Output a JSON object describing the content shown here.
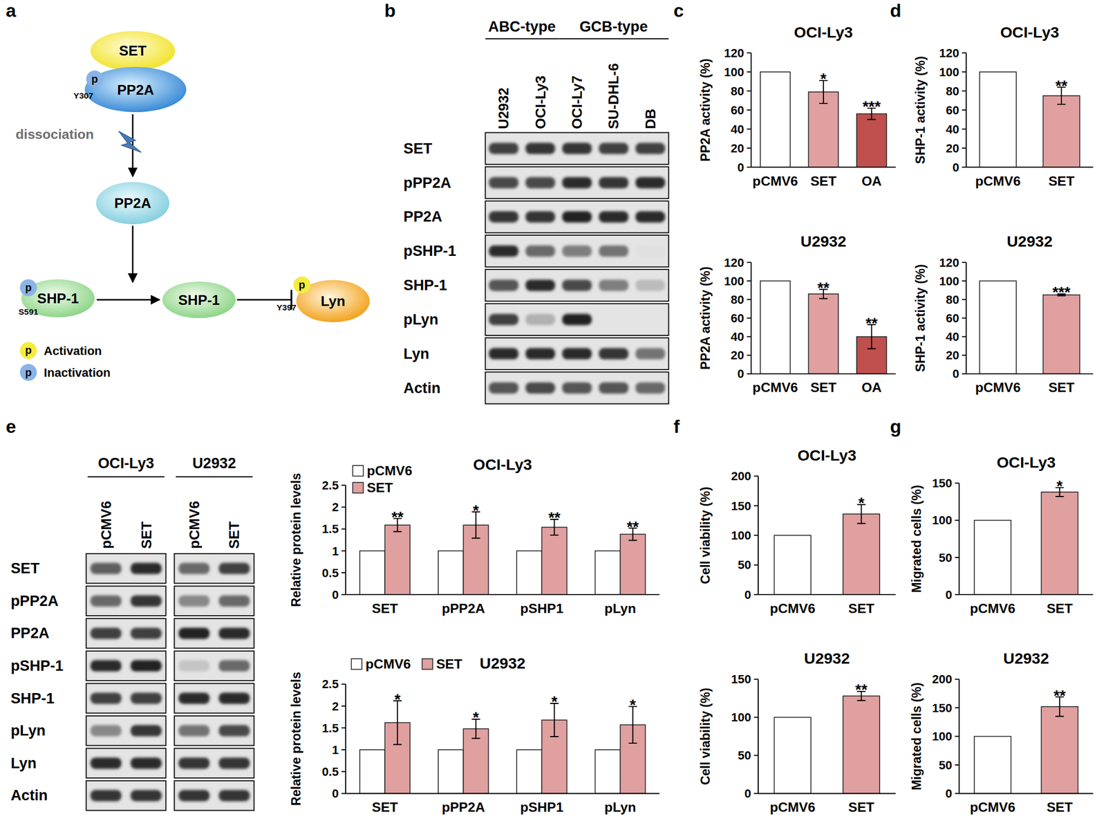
{
  "panels": [
    "a",
    "b",
    "c",
    "d",
    "e",
    "f",
    "g"
  ],
  "diagram": {
    "phospho_symbol": "p",
    "edge_label": "dissociation",
    "nodes": [
      {
        "label": "SET"
      },
      {
        "label": "PP2A",
        "phospho": "Inactivation",
        "site": "Y307"
      },
      {
        "label": "PP2A"
      },
      {
        "label": "SHP-1",
        "phospho": "Inactivation",
        "site": "S591"
      },
      {
        "label": "SHP-1"
      },
      {
        "label": "Lyn",
        "phospho": "Activation",
        "site": "Y397"
      }
    ],
    "legend": [
      {
        "label": "Activation",
        "color": "#f5ec3d"
      },
      {
        "label": "Inactivation",
        "color": "#8ab4e6"
      }
    ]
  },
  "blots": [
    {
      "groups": [
        {
          "label": "ABC-type",
          "lanes": [
            "U2932",
            "OCI-Ly3"
          ]
        },
        {
          "label": "GCB-type",
          "lanes": [
            "OCI-Ly7",
            "SU-DHL-6",
            "DB"
          ]
        }
      ],
      "rows": [
        {
          "label": "SET",
          "intensity": [
            0.8,
            0.85,
            0.85,
            0.8,
            0.8
          ]
        },
        {
          "label": "pPP2A",
          "intensity": [
            0.75,
            0.75,
            0.9,
            0.85,
            0.9
          ]
        },
        {
          "label": "PP2A",
          "intensity": [
            0.85,
            0.85,
            0.95,
            0.9,
            0.9
          ]
        },
        {
          "label": "pSHP-1",
          "intensity": [
            0.9,
            0.6,
            0.5,
            0.55,
            0.02
          ]
        },
        {
          "label": "SHP-1",
          "intensity": [
            0.7,
            0.9,
            0.75,
            0.5,
            0.2
          ]
        },
        {
          "label": "pLyn",
          "intensity": [
            0.8,
            0.25,
            0.95,
            0,
            0
          ]
        },
        {
          "label": "Lyn",
          "intensity": [
            0.9,
            0.9,
            0.9,
            0.85,
            0.55
          ]
        },
        {
          "label": "Actin",
          "intensity": [
            0.7,
            0.75,
            0.7,
            0.7,
            0.6
          ]
        }
      ]
    },
    {
      "groups": [
        {
          "label": "OCI-Ly3",
          "lanes": [
            "pCMV6",
            "SET"
          ]
        },
        {
          "label": "U2932",
          "lanes": [
            "pCMV6",
            "SET"
          ]
        }
      ],
      "rows": [
        {
          "label": "SET",
          "intensity": [
            0.65,
            0.9,
            0.6,
            0.8
          ]
        },
        {
          "label": "pPP2A",
          "intensity": [
            0.6,
            0.85,
            0.45,
            0.6
          ]
        },
        {
          "label": "PP2A",
          "intensity": [
            0.8,
            0.8,
            0.95,
            0.9
          ]
        },
        {
          "label": "pSHP-1",
          "intensity": [
            0.9,
            0.95,
            0.15,
            0.6
          ]
        },
        {
          "label": "SHP-1",
          "intensity": [
            0.8,
            0.8,
            0.9,
            0.9
          ]
        },
        {
          "label": "pLyn",
          "intensity": [
            0.45,
            0.85,
            0.55,
            0.75
          ]
        },
        {
          "label": "Lyn",
          "intensity": [
            0.9,
            0.9,
            0.85,
            0.85
          ]
        },
        {
          "label": "Actin",
          "intensity": [
            0.85,
            0.85,
            0.85,
            0.85
          ]
        }
      ]
    }
  ],
  "chart_data": [
    {
      "type": "bar",
      "title": "OCI-Ly3",
      "y_label": "PP2A activity (%)",
      "categories": [
        "pCMV6",
        "SET",
        "OA"
      ],
      "values": [
        100,
        79,
        56
      ],
      "errors": [
        null,
        12,
        6
      ],
      "significance": [
        null,
        "*",
        "***"
      ],
      "colors": [
        "#ffffff",
        "#e0a0a0",
        "#c0504d"
      ],
      "ylim": [
        0,
        120
      ],
      "yticks": [
        0,
        20,
        40,
        60,
        80,
        100,
        120
      ]
    },
    {
      "type": "bar",
      "title": "U2932",
      "y_label": "PP2A activity (%)",
      "categories": [
        "pCMV6",
        "SET",
        "OA"
      ],
      "values": [
        100,
        86,
        40
      ],
      "errors": [
        null,
        5,
        13
      ],
      "significance": [
        null,
        "**",
        "**"
      ],
      "colors": [
        "#ffffff",
        "#e0a0a0",
        "#c0504d"
      ],
      "ylim": [
        0,
        120
      ],
      "yticks": [
        0,
        20,
        40,
        60,
        80,
        100,
        120
      ]
    },
    {
      "type": "bar",
      "title": "OCI-Ly3",
      "y_label": "SHP-1 activity (%)",
      "categories": [
        "pCMV6",
        "SET"
      ],
      "values": [
        100,
        75
      ],
      "errors": [
        null,
        9
      ],
      "significance": [
        null,
        "**"
      ],
      "colors": [
        "#ffffff",
        "#e0a0a0"
      ],
      "ylim": [
        0,
        120
      ],
      "yticks": [
        0,
        20,
        40,
        60,
        80,
        100,
        120
      ]
    },
    {
      "type": "bar",
      "title": "U2932",
      "y_label": "SHP-1 activity (%)",
      "categories": [
        "pCMV6",
        "SET"
      ],
      "values": [
        100,
        85
      ],
      "errors": [
        null,
        1
      ],
      "significance": [
        null,
        "***"
      ],
      "colors": [
        "#ffffff",
        "#e0a0a0"
      ],
      "ylim": [
        0,
        120
      ],
      "yticks": [
        0,
        20,
        40,
        60,
        80,
        100,
        120
      ]
    },
    {
      "type": "bar",
      "title": "OCI-Ly3",
      "y_label": "Relative protein levels",
      "categories": [
        "SET",
        "pPP2A",
        "pSHP1",
        "pLyn"
      ],
      "series": [
        {
          "name": "pCMV6",
          "color": "#ffffff",
          "values": [
            1,
            1,
            1,
            1
          ]
        },
        {
          "name": "SET",
          "color": "#e0a0a0",
          "values": [
            1.59,
            1.59,
            1.54,
            1.38
          ],
          "errors": [
            0.15,
            0.3,
            0.18,
            0.14
          ],
          "significance": [
            "**",
            "*",
            "**",
            "**"
          ]
        }
      ],
      "ylim": [
        0,
        2.5
      ],
      "yticks": [
        0,
        0.5,
        1,
        1.5,
        2,
        2.5
      ],
      "legend": "upper left"
    },
    {
      "type": "bar",
      "title": "U2932",
      "y_label": "Relative protein levels",
      "categories": [
        "SET",
        "pPP2A",
        "pSHP1",
        "pLyn"
      ],
      "series": [
        {
          "name": "pCMV6",
          "color": "#ffffff",
          "values": [
            1,
            1,
            1,
            1
          ]
        },
        {
          "name": "SET",
          "color": "#e0a0a0",
          "values": [
            1.62,
            1.48,
            1.68,
            1.57
          ],
          "errors": [
            0.5,
            0.22,
            0.38,
            0.42
          ],
          "significance": [
            "*",
            "*",
            "*",
            "*"
          ]
        }
      ],
      "ylim": [
        0,
        2.5
      ],
      "yticks": [
        0,
        0.5,
        1,
        1.5,
        2,
        2.5
      ],
      "legend": "top"
    },
    {
      "type": "bar",
      "title": "OCI-Ly3",
      "y_label": "Cell viability (%)",
      "categories": [
        "pCMV6",
        "SET"
      ],
      "values": [
        100,
        136
      ],
      "errors": [
        null,
        16
      ],
      "significance": [
        null,
        "*"
      ],
      "colors": [
        "#ffffff",
        "#e0a0a0"
      ],
      "ylim": [
        0,
        200
      ],
      "yticks": [
        0,
        50,
        100,
        150,
        200
      ]
    },
    {
      "type": "bar",
      "title": "U2932",
      "y_label": "Cell viability (%)",
      "categories": [
        "pCMV6",
        "SET"
      ],
      "values": [
        100,
        128
      ],
      "errors": [
        null,
        6
      ],
      "significance": [
        null,
        "**"
      ],
      "colors": [
        "#ffffff",
        "#e0a0a0"
      ],
      "ylim": [
        0,
        150
      ],
      "yticks": [
        0,
        50,
        100,
        150
      ]
    },
    {
      "type": "bar",
      "title": "OCI-Ly3",
      "y_label": "Migrated cells (%)",
      "categories": [
        "pCMV6",
        "SET"
      ],
      "values": [
        100,
        138
      ],
      "errors": [
        null,
        6
      ],
      "significance": [
        null,
        "*"
      ],
      "colors": [
        "#ffffff",
        "#e0a0a0"
      ],
      "ylim": [
        0,
        150
      ],
      "yticks": [
        0,
        50,
        100,
        150
      ]
    },
    {
      "type": "bar",
      "title": "U2932",
      "y_label": "Migrated cells (%)",
      "categories": [
        "pCMV6",
        "SET"
      ],
      "values": [
        100,
        152
      ],
      "errors": [
        null,
        17
      ],
      "significance": [
        null,
        "**"
      ],
      "colors": [
        "#ffffff",
        "#e0a0a0"
      ],
      "ylim": [
        0,
        200
      ],
      "yticks": [
        0,
        50,
        100,
        150,
        200
      ]
    }
  ]
}
